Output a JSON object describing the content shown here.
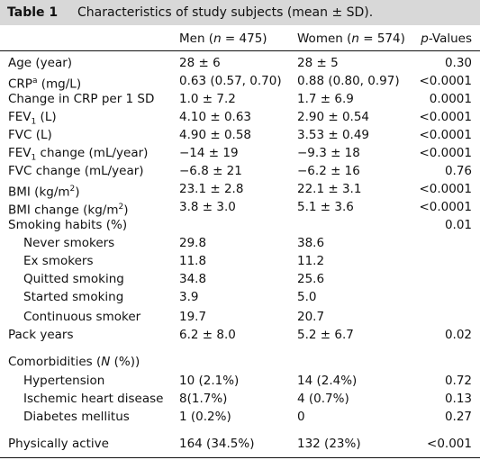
{
  "table": {
    "label": "Table 1",
    "caption": "Characteristics of study subjects (mean ± SD).",
    "headers": [
      "",
      "Men (n = 475)",
      "Women (n = 574)",
      "p-Values"
    ],
    "rows": [
      {
        "label": "Age (year)",
        "men": "28 ± 6",
        "women": "28 ± 5",
        "p": "0.30"
      },
      {
        "label": "CRPa (mg/L)",
        "men": "0.63 (0.57, 0.70)",
        "women": "0.88 (0.80, 0.97)",
        "p": "<0.0001"
      },
      {
        "label": "Change in CRP per 1 SD",
        "men": "1.0 ± 7.2",
        "women": "1.7 ± 6.9",
        "p": "0.0001"
      },
      {
        "label": "FEV1 (L)",
        "men": "4.10 ± 0.63",
        "women": "2.90 ± 0.54",
        "p": "<0.0001"
      },
      {
        "label": "FVC (L)",
        "men": "4.90 ± 0.58",
        "women": "3.53 ± 0.49",
        "p": "<0.0001"
      },
      {
        "label": "FEV1 change (mL/year)",
        "men": "−14 ± 19",
        "women": "−9.3 ± 18",
        "p": "<0.0001"
      },
      {
        "label": "FVC change (mL/year)",
        "men": "−6.8 ± 21",
        "women": "−6.2 ± 16",
        "p": "0.76"
      },
      {
        "label": "BMI (kg/m2)",
        "men": "23.1 ± 2.8",
        "women": "22.1 ± 3.1",
        "p": "<0.0001"
      },
      {
        "label": "BMI change (kg/m2)",
        "men": "3.8 ± 3.0",
        "women": "5.1 ± 3.6",
        "p": "<0.0001"
      },
      {
        "label": "Smoking habits (%)",
        "men": "",
        "women": "",
        "p": "0.01"
      },
      {
        "label": "Never smokers",
        "men": "29.8",
        "women": "38.6",
        "p": ""
      },
      {
        "label": "Ex smokers",
        "men": "11.8",
        "women": "11.2",
        "p": ""
      },
      {
        "label": "Quitted smoking",
        "men": "34.8",
        "women": "25.6",
        "p": ""
      },
      {
        "label": "Started smoking",
        "men": "3.9",
        "women": "5.0",
        "p": ""
      },
      {
        "label": "Continuous smoker",
        "men": "19.7",
        "women": "20.7",
        "p": ""
      },
      {
        "label": "Pack years",
        "men": "6.2 ± 8.0",
        "women": "5.2 ± 6.7",
        "p": "0.02"
      },
      {
        "label": "Comorbidities (N (%))",
        "men": "",
        "women": "",
        "p": ""
      },
      {
        "label": "Hypertension",
        "men": "10 (2.1%)",
        "women": "14 (2.4%)",
        "p": "0.72"
      },
      {
        "label": "Ischemic heart disease",
        "men": "8(1.7%)",
        "women": "4 (0.7%)",
        "p": "0.13"
      },
      {
        "label": "Diabetes mellitus",
        "men": "1 (0.2%)",
        "women": "0",
        "p": "0.27"
      },
      {
        "label": "Physically active",
        "men": "164 (34.5%)",
        "women": "132 (23%)",
        "p": "<0.001"
      }
    ]
  }
}
